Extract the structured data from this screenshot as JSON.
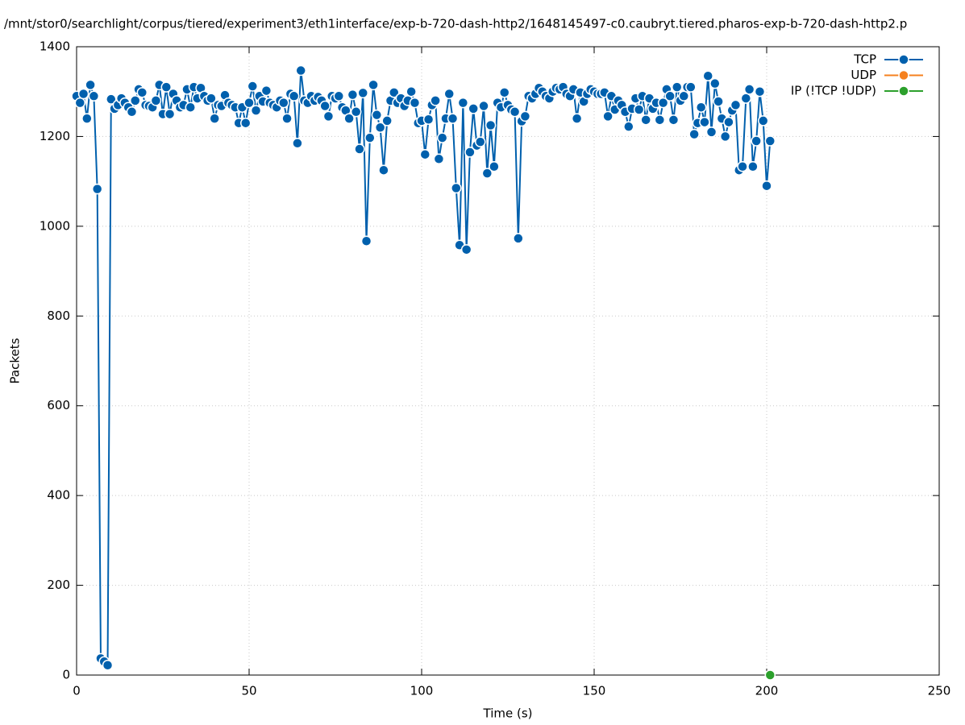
{
  "chart_data": {
    "type": "line",
    "title": "/mnt/stor0/searchlight/corpus/tiered/experiment3/eth1interface/exp-b-720-dash-http2/1648145497-c0.caubryt.tiered.pharos-exp-b-720-dash-http2.p",
    "x_label": "Time (s)",
    "y_label": "Packets",
    "xlim": [
      0,
      250
    ],
    "xticks": [
      0,
      50,
      100,
      150,
      200,
      250
    ],
    "ylim": [
      0,
      1400
    ],
    "yticks": [
      0,
      200,
      400,
      600,
      800,
      1000,
      1200,
      1400
    ],
    "grid": true,
    "legend": "top-right",
    "series": [
      {
        "name": "TCP",
        "color": "#0060ad",
        "x": [
          0,
          1,
          2,
          3,
          4,
          5,
          6,
          7,
          8,
          9,
          10,
          11,
          12,
          13,
          14,
          15,
          16,
          17,
          18,
          19,
          20,
          21,
          22,
          23,
          24,
          25,
          26,
          27,
          28,
          29,
          30,
          31,
          32,
          33,
          34,
          35,
          36,
          37,
          38,
          39,
          40,
          41,
          42,
          43,
          44,
          45,
          46,
          47,
          48,
          49,
          50,
          51,
          52,
          53,
          54,
          55,
          56,
          57,
          58,
          59,
          60,
          61,
          62,
          63,
          64,
          65,
          66,
          67,
          68,
          69,
          70,
          71,
          72,
          73,
          74,
          75,
          76,
          77,
          78,
          79,
          80,
          81,
          82,
          83,
          84,
          85,
          86,
          87,
          88,
          89,
          90,
          91,
          92,
          93,
          94,
          95,
          96,
          97,
          98,
          99,
          100,
          101,
          102,
          103,
          104,
          105,
          106,
          107,
          108,
          109,
          110,
          111,
          112,
          113,
          114,
          115,
          116,
          117,
          118,
          119,
          120,
          121,
          122,
          123,
          124,
          125,
          126,
          127,
          128,
          129,
          130,
          131,
          132,
          133,
          134,
          135,
          136,
          137,
          138,
          139,
          140,
          141,
          142,
          143,
          144,
          145,
          146,
          147,
          148,
          149,
          150,
          151,
          152,
          153,
          154,
          155,
          156,
          157,
          158,
          159,
          160,
          161,
          162,
          163,
          164,
          165,
          166,
          167,
          168,
          169,
          170,
          171,
          172,
          173,
          174,
          175,
          176,
          177,
          178,
          179,
          180,
          181,
          182,
          183,
          184,
          185,
          186,
          187,
          188,
          189,
          190,
          191,
          192,
          193,
          194,
          195,
          196,
          197,
          198,
          199,
          200,
          201
        ],
        "values": [
          1290,
          1275,
          1295,
          1240,
          1315,
          1290,
          1083,
          37,
          30,
          22,
          1283,
          1262,
          1270,
          1285,
          1275,
          1265,
          1255,
          1280,
          1305,
          1298,
          1270,
          1268,
          1265,
          1280,
          1315,
          1250,
          1310,
          1250,
          1295,
          1280,
          1265,
          1270,
          1305,
          1265,
          1310,
          1285,
          1308,
          1290,
          1280,
          1285,
          1240,
          1270,
          1268,
          1292,
          1275,
          1270,
          1265,
          1230,
          1265,
          1230,
          1275,
          1312,
          1258,
          1290,
          1278,
          1302,
          1275,
          1270,
          1265,
          1280,
          1275,
          1240,
          1295,
          1290,
          1185,
          1347,
          1280,
          1275,
          1290,
          1280,
          1288,
          1280,
          1268,
          1245,
          1290,
          1285,
          1290,
          1265,
          1258,
          1240,
          1293,
          1255,
          1172,
          1297,
          967,
          1197,
          1315,
          1248,
          1220,
          1125,
          1235,
          1280,
          1298,
          1275,
          1285,
          1268,
          1280,
          1300,
          1275,
          1230,
          1235,
          1160,
          1238,
          1270,
          1280,
          1150,
          1197,
          1240,
          1295,
          1240,
          1085,
          958,
          1275,
          948,
          1165,
          1262,
          1180,
          1188,
          1268,
          1118,
          1225,
          1133,
          1275,
          1265,
          1298,
          1270,
          1260,
          1255,
          973,
          1234,
          1245,
          1290,
          1285,
          1295,
          1308,
          1300,
          1290,
          1285,
          1300,
          1308,
          1305,
          1310,
          1295,
          1290,
          1305,
          1240,
          1298,
          1278,
          1295,
          1305,
          1300,
          1295,
          1295,
          1298,
          1245,
          1290,
          1260,
          1280,
          1270,
          1255,
          1222,
          1262,
          1285,
          1260,
          1290,
          1237,
          1285,
          1262,
          1275,
          1237,
          1275,
          1305,
          1290,
          1237,
          1310,
          1280,
          1290,
          1310,
          1310,
          1205,
          1230,
          1265,
          1232,
          1335,
          1210,
          1318,
          1278,
          1240,
          1200,
          1232,
          1258,
          1270,
          1125,
          1133,
          1285,
          1305,
          1133,
          1190,
          1300,
          1235,
          1090,
          1190
        ]
      },
      {
        "name": "UDP",
        "color": "#f5811f",
        "x": [],
        "values": []
      },
      {
        "name": "IP (!TCP  !UDP)",
        "color": "#2ca02c",
        "x": [
          201
        ],
        "values": [
          0
        ]
      }
    ]
  }
}
